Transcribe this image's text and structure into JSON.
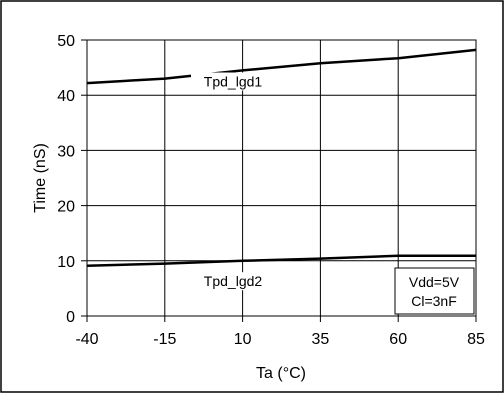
{
  "chart_data": {
    "type": "line",
    "title": "",
    "xlabel": "Ta (°C)",
    "ylabel": "Time (nS)",
    "x": [
      -40,
      -15,
      10,
      35,
      60,
      85
    ],
    "xlim": [
      -40,
      85
    ],
    "ylim": [
      0,
      50
    ],
    "yticks": [
      0,
      10,
      20,
      30,
      40,
      50
    ],
    "grid": true,
    "series": [
      {
        "name": "Tpd_lgd1",
        "values": [
          42.2,
          43.0,
          44.5,
          45.8,
          46.7,
          48.2
        ]
      },
      {
        "name": "Tpd_lgd2",
        "values": [
          9.1,
          9.5,
          10.0,
          10.4,
          10.9,
          10.9
        ]
      }
    ],
    "annotation": {
      "lines": [
        "Vdd=5V",
        "Cl=3nF"
      ]
    }
  }
}
